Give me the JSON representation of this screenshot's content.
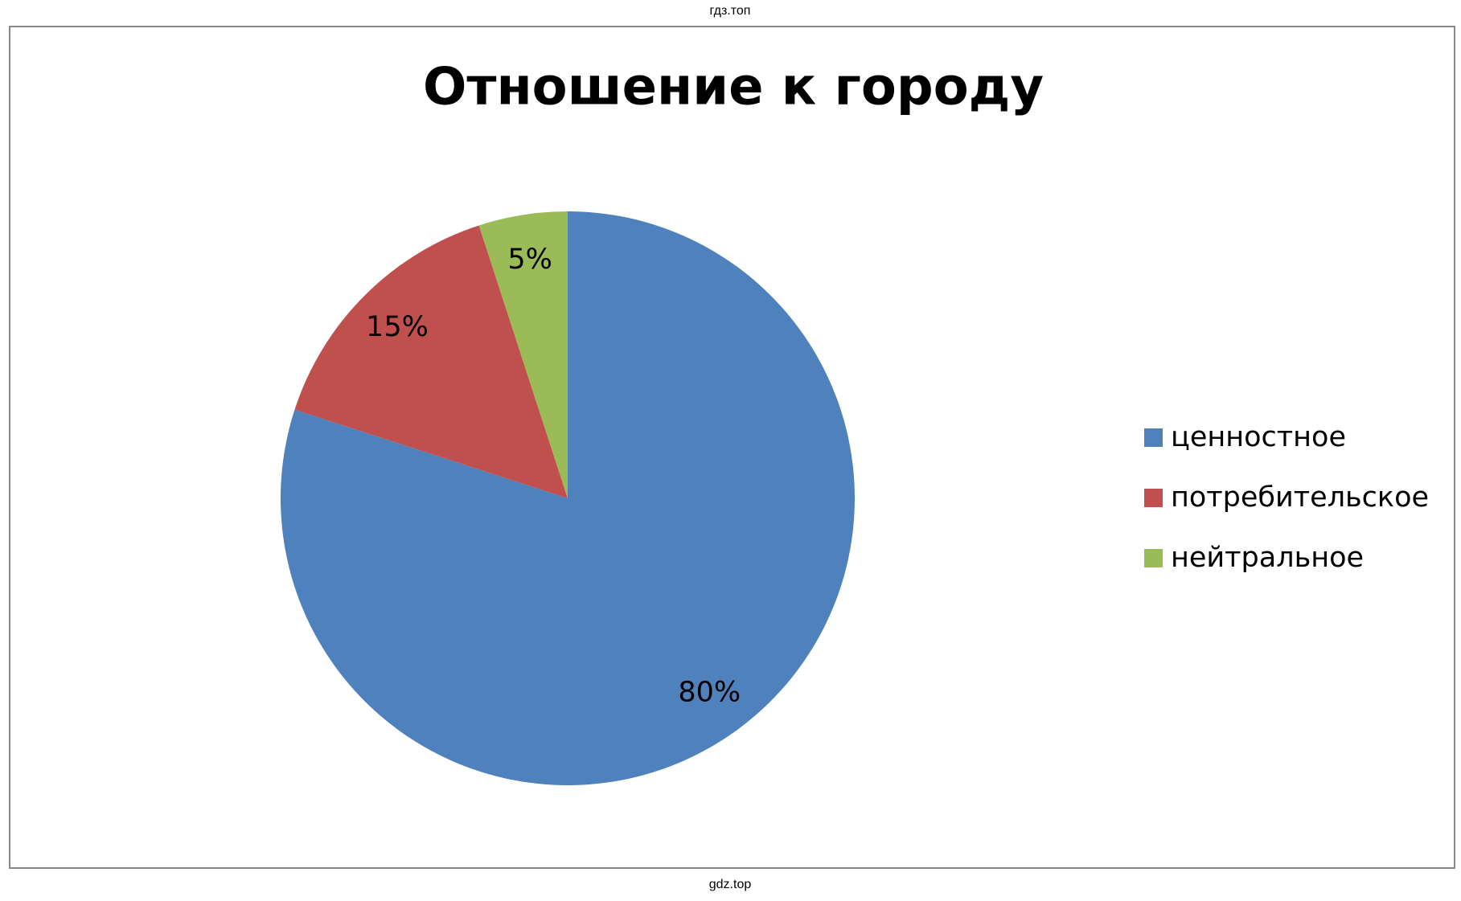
{
  "header": {
    "text": "гдз.топ"
  },
  "footer": {
    "text": "gdz.top"
  },
  "chart_data": {
    "type": "pie",
    "title": "Отношение к городу",
    "categories": [
      "ценностное",
      "потребительское",
      "нейтральное"
    ],
    "values": [
      80,
      15,
      5
    ],
    "value_labels": [
      "80%",
      "15%",
      "5%"
    ],
    "colors": [
      "#4f81bd",
      "#c0504d",
      "#9bbb59"
    ],
    "legend": "right"
  }
}
